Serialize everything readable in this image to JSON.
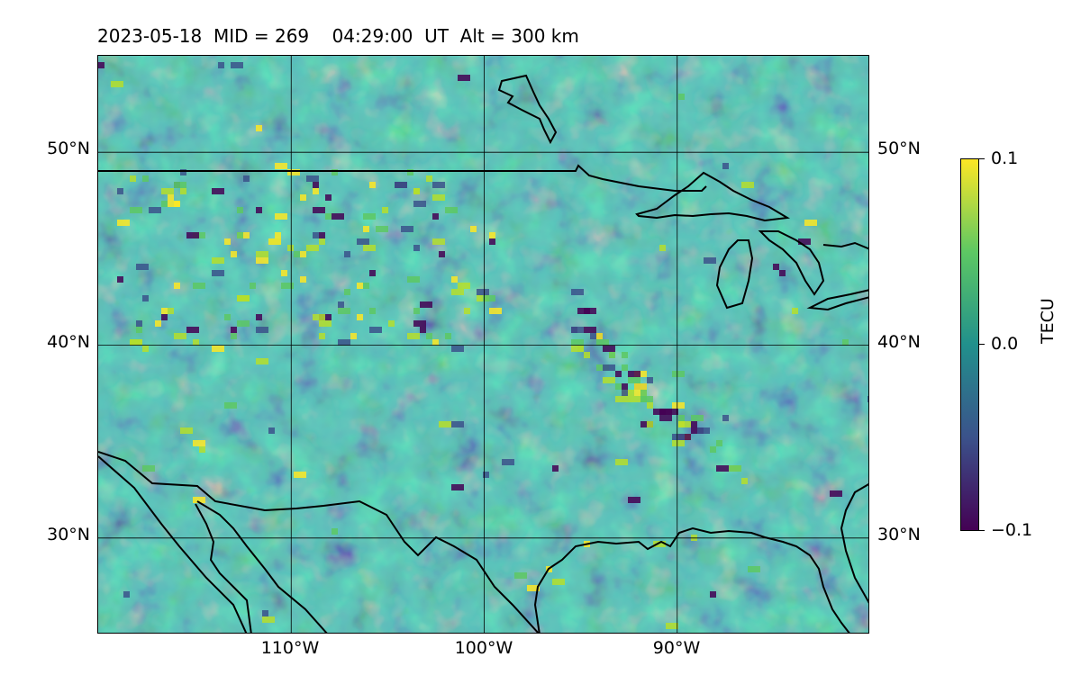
{
  "title": "2023-05-18  MID = 269    04:29:00  UT  Alt = 300 km",
  "map": {
    "lat_labels": [
      "50°N",
      "40°N",
      "30°N"
    ],
    "lon_labels": [
      "110°W",
      "100°W",
      "90°W"
    ],
    "lat_range": [
      25,
      55
    ],
    "lon_range": [
      -120,
      -80
    ],
    "grid": true
  },
  "colorbar": {
    "title": "TECU",
    "ticks": [
      "0.1",
      "0.0",
      "−0.1"
    ],
    "range": [
      -0.1,
      0.1
    ],
    "colormap": "viridis",
    "colors": [
      "#440154",
      "#3b528b",
      "#21908c",
      "#5dc863",
      "#fde725"
    ]
  }
}
